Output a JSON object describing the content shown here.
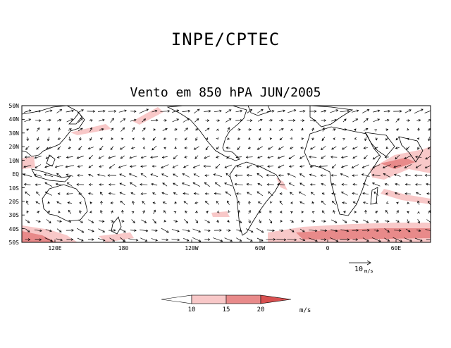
{
  "header": {
    "title": "INPE/CPTEC"
  },
  "map": {
    "title": "Vento em 850 hPA JUN/2005",
    "lat_labels": [
      "50N",
      "40N",
      "30N",
      "20N",
      "10N",
      "EQ",
      "10S",
      "20S",
      "30S",
      "40S",
      "50S"
    ],
    "lon_labels": [
      "120E",
      "180",
      "120W",
      "60W",
      "0",
      "60E"
    ],
    "vector_scale": {
      "value": "10",
      "unit": "m/s"
    },
    "colorbar": {
      "labels": [
        "10",
        "15",
        "20"
      ],
      "unit": "m/s",
      "colors": [
        "#ffffff",
        "#f8c8c8",
        "#e88a8a",
        "#d85050"
      ]
    }
  }
}
